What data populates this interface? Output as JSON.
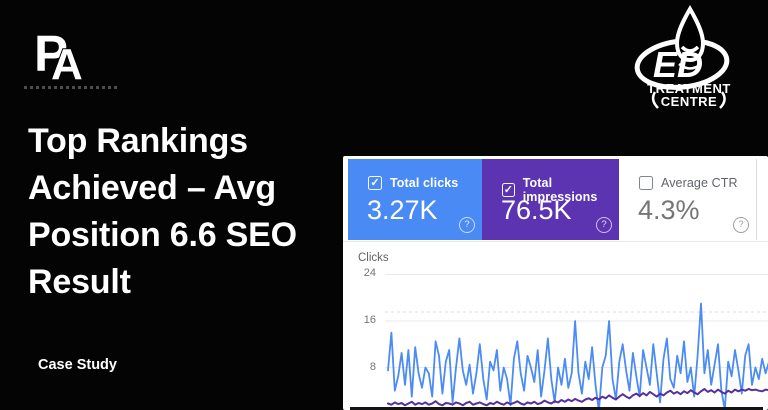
{
  "hero": {
    "title_lines": [
      "Top Rankings",
      "Achieved – Avg",
      "Position 6.6 SEO",
      "Result"
    ],
    "full_title": "Top Rankings Achieved – Avg Position 6.6 SEO Result",
    "tag": "Case Study"
  },
  "branding": {
    "pa_logo": {
      "letter_p": "P",
      "letter_a": "A"
    },
    "ed_logo": {
      "monogram": "ED",
      "line1": "TREATMENT",
      "line2": "CENTRE"
    }
  },
  "search_console": {
    "check_glyph": "✓",
    "help_glyph": "?",
    "cards": [
      {
        "label": "Total clicks",
        "value": "3.27K",
        "checked": true,
        "bg": "#4a8af4"
      },
      {
        "label": "Total impressions",
        "value": "76.5K",
        "checked": true,
        "bg": "#5c34b2"
      },
      {
        "label": "Average CTR",
        "value": "4.3%",
        "checked": false,
        "bg": "#ffffff"
      }
    ]
  },
  "chart_data": {
    "type": "line",
    "title": "Clicks",
    "ylabel": "Clicks",
    "xlabel": "",
    "yticks_display": [
      "24",
      "16",
      "8"
    ],
    "yticks": [
      24,
      16,
      8
    ],
    "ylim": [
      0,
      26
    ],
    "x_axis_labels_visible": false,
    "grid": "horizontal",
    "legend_position": "none (cards above act as legend)",
    "note": "Daily Google Search Console time series; impressions line plotted against a hidden secondary axis, shown here in clicks-axis units; right and bottom of chart cropped by image edge.",
    "colors": {
      "gridline": "#e8eaed",
      "dashed_gridline": "#dadce0",
      "axis_text": "#757575"
    },
    "series": [
      {
        "name": "Total clicks",
        "color": "#4b8bf5",
        "width": 1.8,
        "values": [
          7.5,
          14,
          4,
          6.5,
          10.5,
          5,
          11,
          3,
          11.5,
          7,
          4.5,
          8,
          7,
          3,
          12.5,
          10,
          3.5,
          9,
          11,
          2,
          8,
          13,
          7.5,
          5,
          8.5,
          3.5,
          7,
          12,
          6,
          2.5,
          9,
          7.5,
          11,
          4,
          8,
          6,
          1.5,
          9.5,
          12.5,
          7,
          4,
          10,
          8,
          5.5,
          11,
          3,
          7.5,
          13,
          6,
          2,
          8,
          5,
          9.5,
          4.5,
          7,
          16,
          7,
          3.5,
          9,
          6,
          11.5,
          5,
          0.5,
          8,
          10,
          16,
          6,
          2.5,
          9,
          12,
          7.5,
          4,
          10.5,
          6.5,
          3,
          11,
          8,
          5,
          12,
          7,
          2,
          9.5,
          13,
          6,
          4.5,
          10,
          7,
          12.5,
          5.5,
          8,
          3,
          10,
          19,
          7,
          11,
          5,
          8.5,
          12,
          4,
          0.8,
          9,
          6.5,
          11,
          7.5,
          3.5,
          10,
          12,
          5,
          8,
          6,
          9.5,
          7,
          9
        ]
      },
      {
        "name": "Total impressions",
        "color": "#56309f",
        "width": 2,
        "values": [
          1.8,
          1.6,
          2,
          1.7,
          1.9,
          1.5,
          1.8,
          2.1,
          1.6,
          1.9,
          1.7,
          2,
          1.6,
          1.8,
          2.2,
          1.7,
          1.5,
          1.9,
          1.8,
          1.6,
          2,
          1.8,
          1.5,
          1.9,
          2.1,
          1.6,
          1.8,
          2,
          1.7,
          1.5,
          1.9,
          1.7,
          2.1,
          1.8,
          1.6,
          2,
          1.7,
          1.9,
          2.2,
          1.8,
          1.6,
          2,
          1.8,
          2.1,
          1.7,
          1.9,
          2.3,
          2,
          1.8,
          2.2,
          2,
          2.4,
          2.1,
          2.5,
          2.2,
          2.6,
          2.3,
          2.1,
          2.5,
          2.7,
          2.4,
          2.8,
          2.5,
          3,
          2.7,
          3.2,
          2.8,
          2.5,
          3,
          3.4,
          3,
          2.7,
          3.2,
          3.5,
          3.1,
          3.6,
          3.2,
          3.8,
          3.4,
          3,
          3.5,
          3.2,
          3.7,
          4,
          3.5,
          3.8,
          3.4,
          3.9,
          3.6,
          4.1,
          3.7,
          3.4,
          3.9,
          4.3,
          3.8,
          4.1,
          3.7,
          4.2,
          3.8,
          3.5,
          4,
          3.7,
          4.2,
          3.9,
          4.2,
          4,
          4.3,
          4.1,
          4.2,
          4,
          3.9,
          4.2,
          4.1
        ]
      }
    ]
  }
}
